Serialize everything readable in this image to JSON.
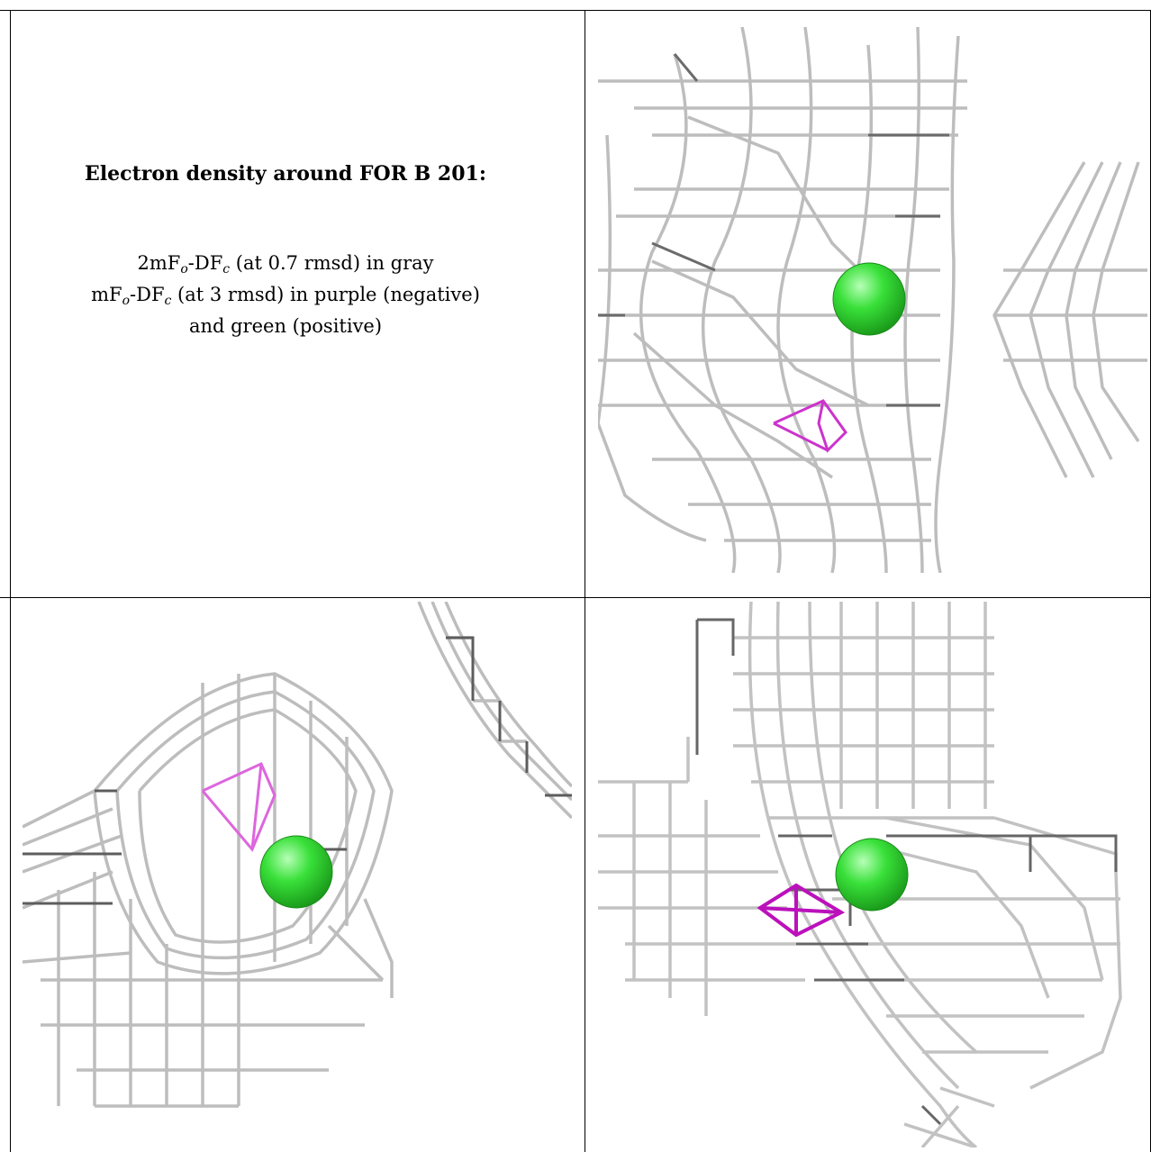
{
  "caption": {
    "title": "Electron density around FOR B 201:",
    "line1_a": "2mF",
    "line1_sub1": "o",
    "line1_b": "-DF",
    "line1_sub2": "c",
    "line1_c": " (at 0.7 rmsd) in gray",
    "line2_a": "mF",
    "line2_sub1": "o",
    "line2_b": "-DF",
    "line2_sub2": "c",
    "line2_c": " (at 3 rmsd) in purple (negative)",
    "line3": "and green (positive)"
  },
  "colors": {
    "mesh_gray": "#b9b9b9",
    "mesh_dark": "#5a5a5a",
    "negative_purple": "#cc33cc",
    "positive_green": "#33dd33"
  }
}
